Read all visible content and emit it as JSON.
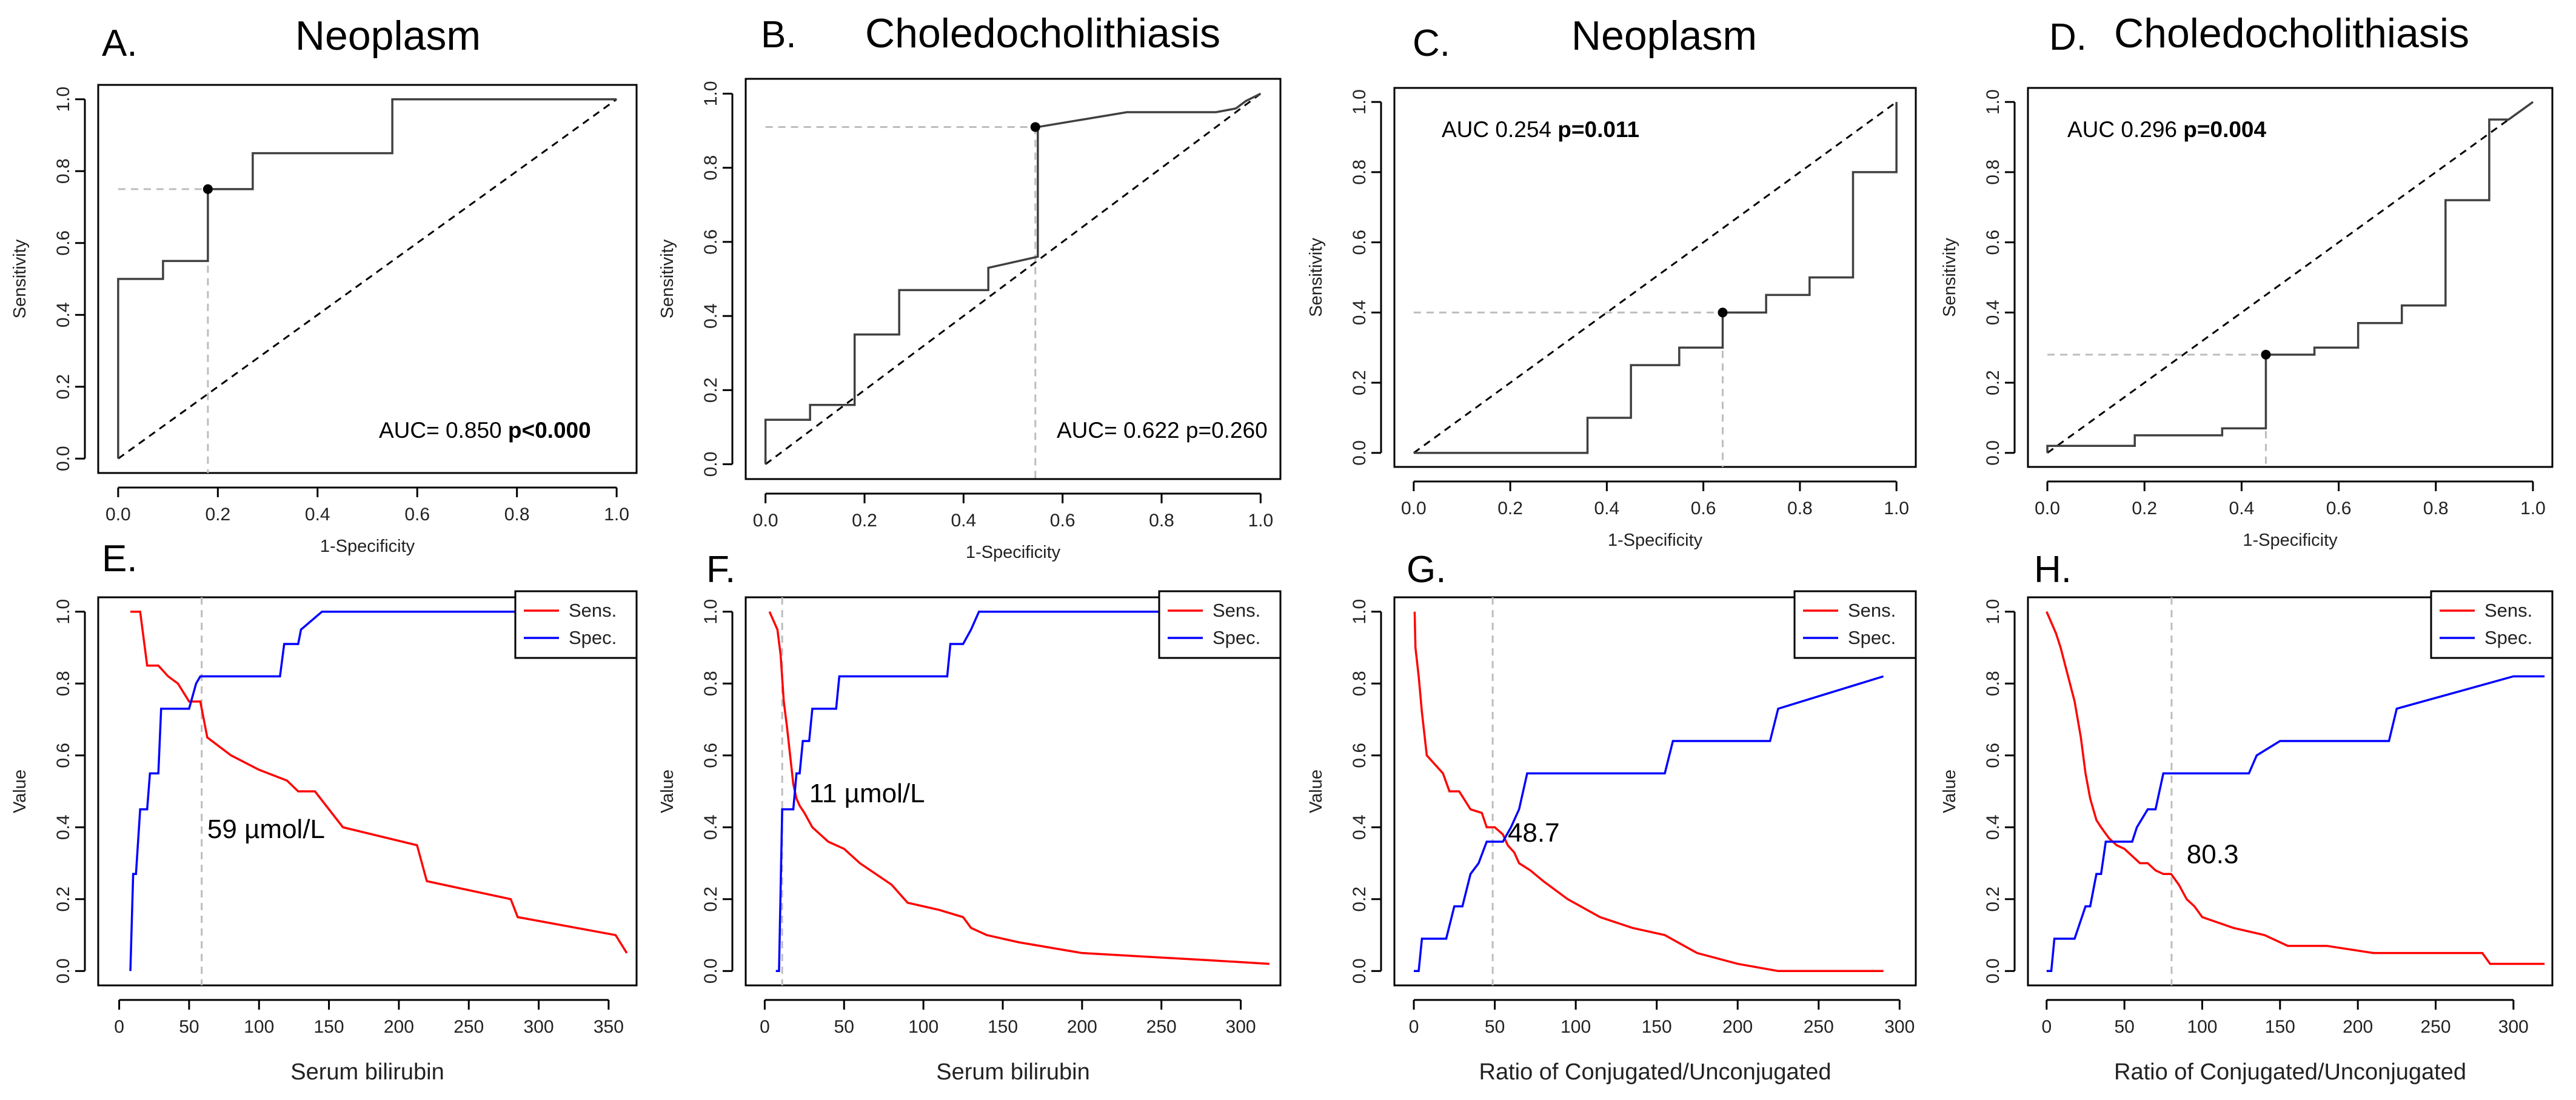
{
  "chart_data": [
    {
      "id": "A",
      "type": "line",
      "subtype": "roc",
      "panel_label": "A.",
      "title": "Neoplasm",
      "xlabel": "1-Specificity",
      "ylabel": "Sensitivity",
      "xlim": [
        0,
        1
      ],
      "ylim": [
        0,
        1
      ],
      "xticks": [
        "0.0",
        "0.2",
        "0.4",
        "0.6",
        "0.8",
        "1.0"
      ],
      "yticks": [
        "0.0",
        "0.2",
        "0.4",
        "0.6",
        "0.8",
        "1.0"
      ],
      "series": [
        {
          "name": "ROC",
          "x": [
            0,
            0,
            0.09,
            0.09,
            0.18,
            0.18,
            0.27,
            0.27,
            0.55,
            0.55,
            1.0
          ],
          "y": [
            0,
            0.5,
            0.5,
            0.55,
            0.55,
            0.75,
            0.75,
            0.85,
            0.85,
            1.0,
            1.0
          ]
        }
      ],
      "cutoff_point": {
        "x": 0.18,
        "y": 0.75
      },
      "auc_text": "AUC= 0.850",
      "p_text": "p<0.000",
      "p_bold": true
    },
    {
      "id": "B",
      "type": "line",
      "subtype": "roc",
      "panel_label": "B.",
      "title": "Choledocholithiasis",
      "xlabel": "1-Specificity",
      "ylabel": "Sensitivity",
      "xlim": [
        0,
        1
      ],
      "ylim": [
        0,
        1
      ],
      "xticks": [
        "0.0",
        "0.2",
        "0.4",
        "0.6",
        "0.8",
        "1.0"
      ],
      "yticks": [
        "0.0",
        "0.2",
        "0.4",
        "0.6",
        "0.8",
        "1.0"
      ],
      "series": [
        {
          "name": "ROC",
          "x": [
            0,
            0,
            0.09,
            0.09,
            0.18,
            0.18,
            0.27,
            0.27,
            0.45,
            0.45,
            0.55,
            0.55,
            0.64,
            0.73,
            0.91,
            0.95,
            0.97,
            1.0
          ],
          "y": [
            0,
            0.12,
            0.12,
            0.16,
            0.16,
            0.35,
            0.35,
            0.47,
            0.47,
            0.53,
            0.56,
            0.91,
            0.93,
            0.95,
            0.95,
            0.96,
            0.98,
            1.0
          ]
        }
      ],
      "cutoff_point": {
        "x": 0.545,
        "y": 0.91
      },
      "auc_text": "AUC= 0.622",
      "p_text": "p=0.260",
      "p_bold": false
    },
    {
      "id": "C",
      "type": "line",
      "subtype": "roc",
      "panel_label": "C.",
      "title": "Neoplasm",
      "xlabel": "1-Specificity",
      "ylabel": "Sensitivity",
      "xlim": [
        0,
        1
      ],
      "ylim": [
        0,
        1
      ],
      "xticks": [
        "0.0",
        "0.2",
        "0.4",
        "0.6",
        "0.8",
        "1.0"
      ],
      "yticks": [
        "0.0",
        "0.2",
        "0.4",
        "0.6",
        "0.8",
        "1.0"
      ],
      "series": [
        {
          "name": "ROC",
          "x": [
            0,
            0.36,
            0.36,
            0.45,
            0.45,
            0.55,
            0.55,
            0.64,
            0.64,
            0.73,
            0.73,
            0.82,
            0.82,
            0.91,
            0.91,
            1.0,
            1.0
          ],
          "y": [
            0,
            0,
            0.1,
            0.1,
            0.25,
            0.25,
            0.3,
            0.3,
            0.4,
            0.4,
            0.45,
            0.45,
            0.5,
            0.5,
            0.8,
            0.8,
            1.0
          ]
        }
      ],
      "cutoff_point": {
        "x": 0.64,
        "y": 0.4
      },
      "auc_text": "AUC 0.254",
      "p_text": "p=0.011",
      "p_bold": true
    },
    {
      "id": "D",
      "type": "line",
      "subtype": "roc",
      "panel_label": "D.",
      "title": "Choledocholithiasis",
      "xlabel": "1-Specificity",
      "ylabel": "Sensitivity",
      "xlim": [
        0,
        1
      ],
      "ylim": [
        0,
        1
      ],
      "xticks": [
        "0.0",
        "0.2",
        "0.4",
        "0.6",
        "0.8",
        "1.0"
      ],
      "yticks": [
        "0.0",
        "0.2",
        "0.4",
        "0.6",
        "0.8",
        "1.0"
      ],
      "series": [
        {
          "name": "ROC",
          "x": [
            0,
            0,
            0.18,
            0.18,
            0.36,
            0.36,
            0.45,
            0.45,
            0.55,
            0.55,
            0.64,
            0.64,
            0.73,
            0.73,
            0.82,
            0.82,
            0.91,
            0.91,
            0.95,
            1.0
          ],
          "y": [
            0,
            0.02,
            0.02,
            0.05,
            0.05,
            0.07,
            0.07,
            0.28,
            0.28,
            0.3,
            0.3,
            0.37,
            0.37,
            0.42,
            0.42,
            0.72,
            0.72,
            0.95,
            0.95,
            1.0
          ]
        }
      ],
      "cutoff_point": {
        "x": 0.45,
        "y": 0.28
      },
      "auc_text": "AUC 0.296",
      "p_text": "p=0.004",
      "p_bold": true
    },
    {
      "id": "E",
      "type": "line",
      "panel_label": "E.",
      "xlabel": "Serum bilirubin",
      "ylabel": "Value",
      "xlim": [
        0,
        370
      ],
      "ylim": [
        0,
        1
      ],
      "xticks": [
        0,
        50,
        100,
        150,
        200,
        250,
        300,
        350
      ],
      "yticks": [
        "0.0",
        "0.2",
        "0.4",
        "0.6",
        "0.8",
        "1.0"
      ],
      "cutoff_x": 59,
      "annotation": "59 µmol/L",
      "annotation_anchor": {
        "x": 63,
        "y": 0.37
      },
      "legend": [
        "Sens.",
        "Spec."
      ],
      "series": [
        {
          "name": "Sens.",
          "color": "#ff0000",
          "x": [
            8,
            15,
            20,
            28,
            35,
            42,
            50,
            58,
            63,
            80,
            100,
            120,
            128,
            140,
            160,
            213,
            220,
            280,
            285,
            355,
            363
          ],
          "y": [
            1.0,
            1.0,
            0.85,
            0.85,
            0.82,
            0.8,
            0.75,
            0.75,
            0.65,
            0.6,
            0.56,
            0.53,
            0.5,
            0.5,
            0.4,
            0.35,
            0.25,
            0.2,
            0.15,
            0.1,
            0.05
          ]
        },
        {
          "name": "Spec.",
          "color": "#0000ff",
          "x": [
            8,
            10,
            12,
            15,
            17,
            20,
            22,
            28,
            30,
            40,
            45,
            50,
            55,
            58,
            62,
            115,
            118,
            128,
            130,
            145,
            150,
            365
          ],
          "y": [
            0.0,
            0.27,
            0.27,
            0.45,
            0.45,
            0.45,
            0.55,
            0.55,
            0.73,
            0.73,
            0.73,
            0.73,
            0.8,
            0.82,
            0.82,
            0.82,
            0.91,
            0.91,
            0.95,
            1.0,
            1.0,
            1.0
          ]
        }
      ]
    },
    {
      "id": "F",
      "type": "line",
      "panel_label": "F.",
      "xlabel": "Serum bilirubin",
      "ylabel": "Value",
      "xlim": [
        0,
        320
      ],
      "ylim": [
        0,
        1
      ],
      "xticks": [
        0,
        50,
        100,
        150,
        200,
        250,
        300
      ],
      "yticks": [
        "0.0",
        "0.2",
        "0.4",
        "0.6",
        "0.8",
        "1.0"
      ],
      "cutoff_x": 11,
      "annotation": "11 µmol/L",
      "annotation_anchor": {
        "x": 28,
        "y": 0.47
      },
      "legend": [
        "Sens.",
        "Spec."
      ],
      "series": [
        {
          "name": "Sens.",
          "color": "#ff0000",
          "x": [
            3,
            5,
            8,
            10,
            12,
            14,
            16,
            18,
            20,
            22,
            25,
            30,
            35,
            40,
            50,
            60,
            70,
            80,
            90,
            100,
            110,
            125,
            130,
            140,
            160,
            200,
            240,
            280,
            318
          ],
          "y": [
            1.0,
            0.98,
            0.95,
            0.88,
            0.75,
            0.68,
            0.6,
            0.52,
            0.48,
            0.46,
            0.44,
            0.4,
            0.38,
            0.36,
            0.34,
            0.3,
            0.27,
            0.24,
            0.19,
            0.18,
            0.17,
            0.15,
            0.12,
            0.1,
            0.08,
            0.05,
            0.04,
            0.03,
            0.02
          ]
        },
        {
          "name": "Spec.",
          "color": "#0000ff",
          "x": [
            7,
            9,
            11,
            13,
            15,
            18,
            20,
            22,
            24,
            28,
            30,
            45,
            47,
            115,
            117,
            125,
            130,
            135,
            140,
            318
          ],
          "y": [
            0.0,
            0.0,
            0.45,
            0.45,
            0.45,
            0.45,
            0.55,
            0.55,
            0.64,
            0.64,
            0.73,
            0.73,
            0.82,
            0.82,
            0.91,
            0.91,
            0.95,
            1.0,
            1.0,
            1.0
          ]
        }
      ]
    },
    {
      "id": "G",
      "type": "line",
      "panel_label": "G.",
      "xlabel": "Ratio of Conjugated/Unconjugated",
      "ylabel": "Value",
      "xlim": [
        0,
        300
      ],
      "ylim": [
        0,
        1
      ],
      "xticks": [
        0,
        50,
        100,
        150,
        200,
        250,
        300
      ],
      "yticks": [
        "0.0",
        "0.2",
        "0.4",
        "0.6",
        "0.8",
        "1.0"
      ],
      "cutoff_x": 48.7,
      "annotation": "48.7",
      "annotation_anchor": {
        "x": 58,
        "y": 0.36
      },
      "legend": [
        "Sens.",
        "Spec."
      ],
      "series": [
        {
          "name": "Sens.",
          "color": "#ff0000",
          "x": [
            0.5,
            1,
            3,
            5,
            8,
            12,
            18,
            22,
            28,
            35,
            42,
            45,
            50,
            55,
            58,
            62,
            65,
            72,
            80,
            95,
            115,
            135,
            155,
            175,
            200,
            225,
            250,
            290
          ],
          "y": [
            1.0,
            0.9,
            0.82,
            0.72,
            0.6,
            0.58,
            0.55,
            0.5,
            0.5,
            0.45,
            0.44,
            0.4,
            0.4,
            0.38,
            0.35,
            0.33,
            0.3,
            0.28,
            0.25,
            0.2,
            0.15,
            0.12,
            0.1,
            0.05,
            0.02,
            0.0,
            0.0,
            0.0
          ]
        },
        {
          "name": "Spec.",
          "color": "#0000ff",
          "x": [
            0,
            3,
            5,
            8,
            12,
            15,
            20,
            25,
            30,
            35,
            40,
            45,
            50,
            55,
            60,
            65,
            70,
            75,
            155,
            160,
            220,
            225,
            290
          ],
          "y": [
            0.0,
            0.0,
            0.09,
            0.09,
            0.09,
            0.09,
            0.09,
            0.18,
            0.18,
            0.27,
            0.3,
            0.36,
            0.36,
            0.36,
            0.4,
            0.45,
            0.55,
            0.55,
            0.55,
            0.64,
            0.64,
            0.73,
            0.82
          ]
        }
      ]
    },
    {
      "id": "H",
      "type": "line",
      "panel_label": "H.",
      "xlabel": "Ratio of Conjugated/Unconjugated",
      "ylabel": "Value",
      "xlim": [
        0,
        320
      ],
      "ylim": [
        0,
        1
      ],
      "xticks": [
        0,
        50,
        100,
        150,
        200,
        250,
        300
      ],
      "yticks": [
        "0.0",
        "0.2",
        "0.4",
        "0.6",
        "0.8",
        "1.0"
      ],
      "cutoff_x": 80.3,
      "annotation": "80.3",
      "annotation_anchor": {
        "x": 90,
        "y": 0.3
      },
      "legend": [
        "Sens.",
        "Spec."
      ],
      "series": [
        {
          "name": "Sens.",
          "color": "#ff0000",
          "x": [
            0,
            3,
            6,
            9,
            12,
            15,
            18,
            22,
            25,
            28,
            32,
            35,
            40,
            45,
            50,
            55,
            60,
            65,
            70,
            75,
            80,
            85,
            90,
            95,
            100,
            120,
            140,
            155,
            180,
            210,
            240,
            280,
            285,
            320
          ],
          "y": [
            1.0,
            0.97,
            0.94,
            0.9,
            0.85,
            0.8,
            0.75,
            0.65,
            0.55,
            0.48,
            0.42,
            0.4,
            0.37,
            0.35,
            0.34,
            0.32,
            0.3,
            0.3,
            0.28,
            0.27,
            0.27,
            0.24,
            0.2,
            0.18,
            0.15,
            0.12,
            0.1,
            0.07,
            0.07,
            0.05,
            0.05,
            0.05,
            0.02,
            0.02
          ]
        },
        {
          "name": "Spec.",
          "color": "#0000ff",
          "x": [
            0,
            3,
            5,
            15,
            18,
            25,
            28,
            32,
            35,
            38,
            40,
            55,
            58,
            65,
            70,
            75,
            80,
            130,
            135,
            150,
            155,
            220,
            225,
            300,
            320
          ],
          "y": [
            0.0,
            0.0,
            0.09,
            0.09,
            0.09,
            0.18,
            0.18,
            0.27,
            0.27,
            0.36,
            0.36,
            0.36,
            0.4,
            0.45,
            0.45,
            0.55,
            0.55,
            0.55,
            0.6,
            0.64,
            0.64,
            0.64,
            0.73,
            0.82,
            0.82
          ]
        }
      ]
    }
  ]
}
